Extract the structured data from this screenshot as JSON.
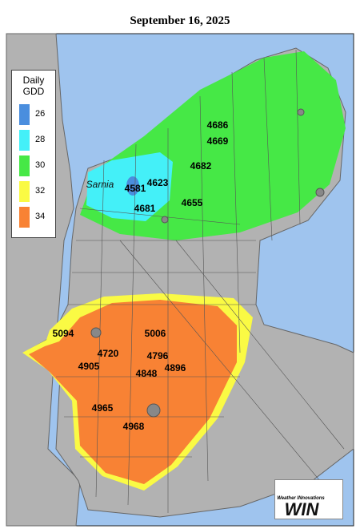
{
  "title": "September 16, 2025",
  "legend": {
    "title": "Daily GDD",
    "classes": [
      {
        "value": 26,
        "color": "#4a8ede"
      },
      {
        "value": 28,
        "color": "#44f0f8"
      },
      {
        "value": 30,
        "color": "#46e846"
      },
      {
        "value": 32,
        "color": "#fafa44"
      },
      {
        "value": 34,
        "color": "#f88234"
      }
    ]
  },
  "places": [
    "Sarnia"
  ],
  "stations": [
    4686,
    4669,
    4682,
    4623,
    4581,
    4681,
    4655,
    5094,
    5006,
    4720,
    4796,
    4905,
    4848,
    4896,
    4965,
    4968
  ],
  "logo": {
    "tagline": "Weather INnovations",
    "name": "WIN"
  }
}
